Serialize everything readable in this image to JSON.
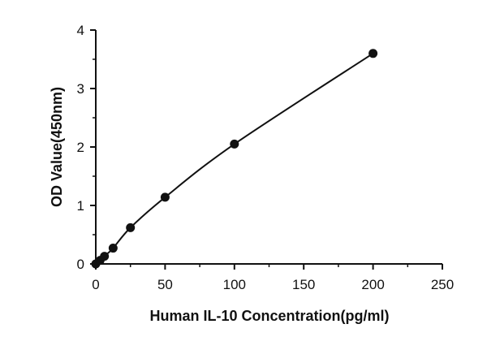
{
  "chart_data": {
    "type": "scatter",
    "xlabel": "Human IL-10 Concentration(pg/ml)",
    "ylabel": "OD Value(450nm)",
    "xlim": [
      0,
      250
    ],
    "ylim": [
      0,
      4
    ],
    "xticks": [
      0,
      50,
      100,
      150,
      200,
      250
    ],
    "yticks": [
      0,
      1,
      2,
      3,
      4
    ],
    "grid": false,
    "series": [
      {
        "points": [
          {
            "x": 0,
            "y": 0.0
          },
          {
            "x": 3.13,
            "y": 0.06
          },
          {
            "x": 6.25,
            "y": 0.13
          },
          {
            "x": 12.5,
            "y": 0.27
          },
          {
            "x": 25,
            "y": 0.62
          },
          {
            "x": 50,
            "y": 1.14
          },
          {
            "x": 100,
            "y": 2.05
          },
          {
            "x": 200,
            "y": 3.6
          }
        ],
        "fit_curve": true,
        "color": "#111111"
      }
    ]
  }
}
